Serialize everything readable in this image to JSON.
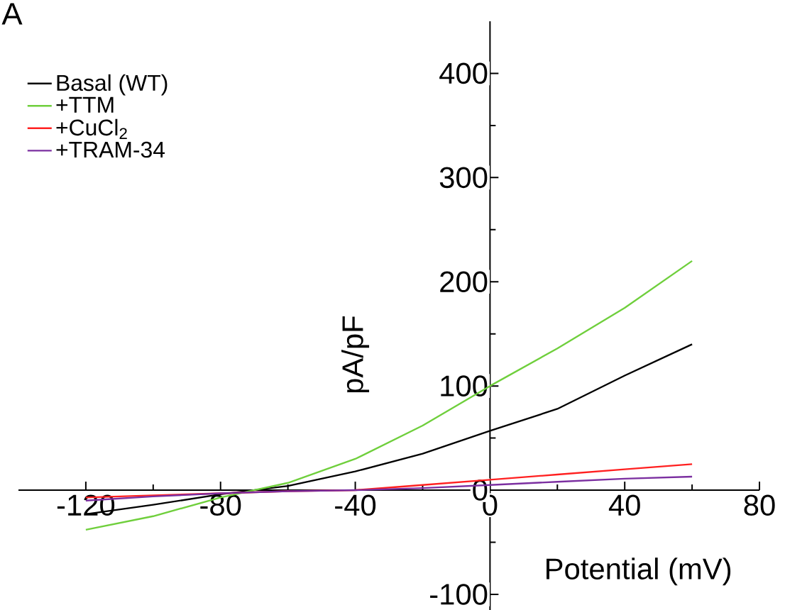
{
  "chart_data": {
    "type": "line",
    "xlabel": "Potential (mV)",
    "ylabel": "pA/pF",
    "annotations": [
      "A"
    ],
    "x": [
      -120,
      -100,
      -80,
      -60,
      -40,
      -20,
      0,
      20,
      40,
      60
    ],
    "series": [
      {
        "name": "Basal (WT)",
        "color": "#000000",
        "values": [
          -23,
          -14,
          -4,
          4,
          18,
          35,
          57,
          78,
          110,
          140
        ]
      },
      {
        "name": "+TTM",
        "color": "#6fcf3c",
        "values": [
          -38,
          -25,
          -7,
          7,
          30,
          62,
          100,
          136,
          175,
          220
        ]
      },
      {
        "name": "+CuCl$_{2}$",
        "color": "#ff2020",
        "values": [
          -7,
          -5,
          -3,
          -1,
          0,
          5,
          10,
          15,
          20,
          25
        ]
      },
      {
        "name": "+TRAM-34",
        "color": "#7b2fa0",
        "values": [
          -10,
          -6,
          -3,
          -1,
          0,
          2,
          5,
          8,
          11,
          13
        ]
      }
    ],
    "xlim": [
      -140,
      80
    ],
    "ylim": [
      -115,
      450
    ],
    "xticks": [
      -120,
      -80,
      -40,
      0,
      40,
      80
    ],
    "yticks": [
      -100,
      0,
      100,
      200,
      300,
      400
    ],
    "legend": "top left",
    "grid": false,
    "marker": "none",
    "line_style": "solid"
  }
}
